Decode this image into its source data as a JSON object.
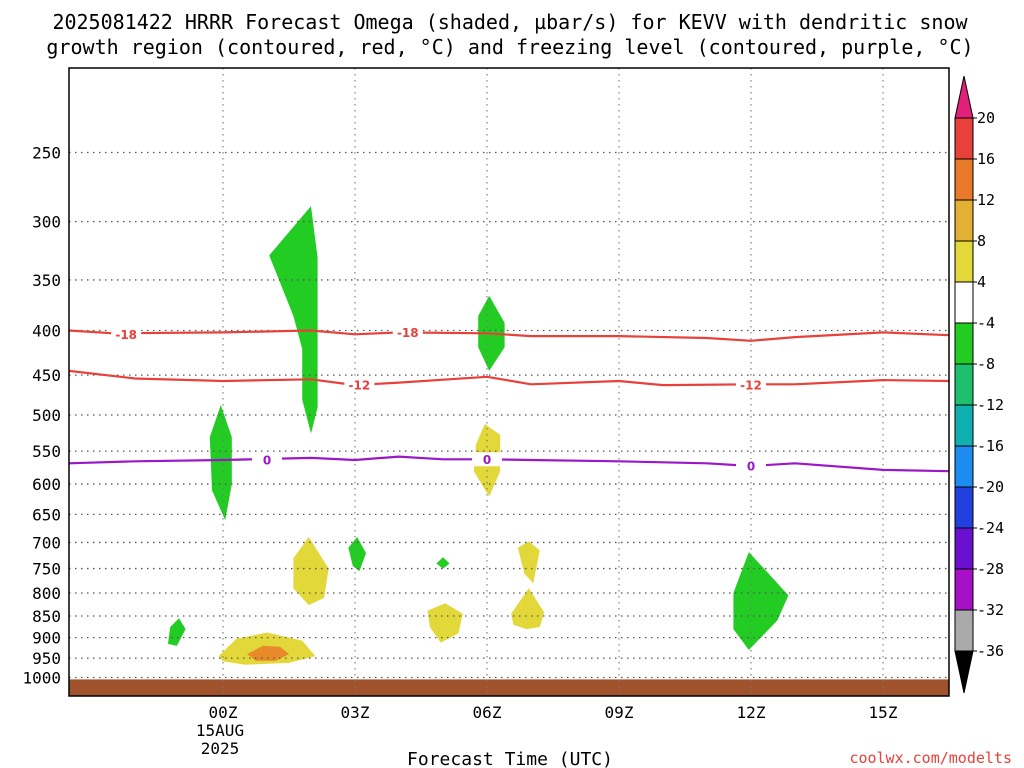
{
  "chart_data": {
    "type": "heatmap",
    "title_line1": "2025081422 HRRR Forecast Omega (shaded, µbar/s) for KEVV with dendritic snow",
    "title_line2": "growth region (contoured, red, °C) and freezing level (contoured, purple, °C)",
    "xlabel": "Forecast Time (UTC)",
    "x_axis": {
      "range_hours": [
        -3.5,
        16.5
      ],
      "ticks": [
        {
          "hour": 0,
          "label": "00Z",
          "sub1": "15AUG",
          "sub2": "2025"
        },
        {
          "hour": 3,
          "label": "03Z"
        },
        {
          "hour": 6,
          "label": "06Z"
        },
        {
          "hour": 9,
          "label": "09Z"
        },
        {
          "hour": 12,
          "label": "12Z"
        },
        {
          "hour": 15,
          "label": "15Z"
        }
      ]
    },
    "y_axis": {
      "unit": "hPa",
      "reversed": true,
      "range": [
        1050,
        200
      ],
      "ticks": [
        250,
        300,
        350,
        400,
        450,
        500,
        550,
        600,
        650,
        700,
        750,
        800,
        850,
        900,
        950,
        1000
      ]
    },
    "grid": true,
    "colorbar": {
      "levels": [
        "20",
        "16",
        "12",
        "8",
        "4",
        "-4",
        "-8",
        "-12",
        "-16",
        "-20",
        "-24",
        "-28",
        "-32",
        "-36"
      ],
      "segments": [
        {
          "color": "#e8403a"
        },
        {
          "color": "#e87a2a"
        },
        {
          "color": "#e2b032"
        },
        {
          "color": "#e2d83a"
        },
        {
          "color": "#ffffff"
        },
        {
          "color": "#22cc22"
        },
        {
          "color": "#1ec070"
        },
        {
          "color": "#10b0b0"
        },
        {
          "color": "#1c8cf0"
        },
        {
          "color": "#2240e0"
        },
        {
          "color": "#6a10d0"
        },
        {
          "color": "#a810c8"
        },
        {
          "color": "#aaaaaa"
        }
      ],
      "top_arrow_color": "#e0207a",
      "bottom_arrow_color": "#000000"
    },
    "omega_regions": [
      {
        "color": "#22cc22",
        "points": [
          [
            1.05,
            328
          ],
          [
            2.0,
            288
          ],
          [
            2.15,
            330
          ],
          [
            2.15,
            490
          ],
          [
            2.0,
            525
          ],
          [
            1.8,
            480
          ],
          [
            1.8,
            420
          ],
          [
            1.6,
            385
          ]
        ]
      },
      {
        "color": "#22cc22",
        "points": [
          [
            -0.3,
            530
          ],
          [
            -0.05,
            487
          ],
          [
            0.2,
            530
          ],
          [
            0.2,
            600
          ],
          [
            0.05,
            660
          ],
          [
            -0.25,
            610
          ]
        ]
      },
      {
        "color": "#22cc22",
        "points": [
          [
            5.8,
            385
          ],
          [
            6.05,
            365
          ],
          [
            6.4,
            392
          ],
          [
            6.4,
            418
          ],
          [
            6.05,
            445
          ],
          [
            5.8,
            418
          ]
        ]
      },
      {
        "color": "#e2d83a",
        "points": [
          [
            5.75,
            540
          ],
          [
            5.95,
            512
          ],
          [
            6.3,
            527
          ],
          [
            6.3,
            580
          ],
          [
            6.05,
            620
          ],
          [
            5.7,
            580
          ]
        ]
      },
      {
        "color": "#22cc22",
        "points": [
          [
            -1.2,
            875
          ],
          [
            -1.0,
            855
          ],
          [
            -0.85,
            880
          ],
          [
            -1.05,
            920
          ],
          [
            -1.25,
            915
          ]
        ]
      },
      {
        "color": "#e2d83a",
        "points": [
          [
            -0.1,
            945
          ],
          [
            0.3,
            903
          ],
          [
            1.0,
            888
          ],
          [
            1.8,
            907
          ],
          [
            2.1,
            945
          ],
          [
            1.5,
            962
          ],
          [
            0.5,
            967
          ],
          [
            0.0,
            958
          ]
        ]
      },
      {
        "color": "#e88a2a",
        "points": [
          [
            0.55,
            940
          ],
          [
            0.9,
            920
          ],
          [
            1.3,
            922
          ],
          [
            1.5,
            940
          ],
          [
            1.2,
            957
          ],
          [
            0.75,
            957
          ]
        ]
      },
      {
        "color": "#e2d83a",
        "points": [
          [
            1.6,
            730
          ],
          [
            1.95,
            690
          ],
          [
            2.4,
            750
          ],
          [
            2.3,
            810
          ],
          [
            1.95,
            826
          ],
          [
            1.6,
            790
          ]
        ]
      },
      {
        "color": "#22cc22",
        "points": [
          [
            2.85,
            710
          ],
          [
            3.05,
            690
          ],
          [
            3.25,
            720
          ],
          [
            3.1,
            755
          ],
          [
            2.95,
            745
          ]
        ]
      },
      {
        "color": "#22cc22",
        "points": [
          [
            4.85,
            740
          ],
          [
            5.0,
            728
          ],
          [
            5.15,
            740
          ],
          [
            5.0,
            750
          ]
        ]
      },
      {
        "color": "#e2d83a",
        "points": [
          [
            4.65,
            838
          ],
          [
            5.05,
            822
          ],
          [
            5.45,
            845
          ],
          [
            5.35,
            890
          ],
          [
            4.95,
            912
          ],
          [
            4.7,
            875
          ]
        ]
      },
      {
        "color": "#e2d83a",
        "points": [
          [
            6.7,
            710
          ],
          [
            6.95,
            698
          ],
          [
            7.2,
            715
          ],
          [
            7.05,
            780
          ],
          [
            6.85,
            760
          ]
        ]
      },
      {
        "color": "#e2d83a",
        "points": [
          [
            6.55,
            845
          ],
          [
            6.95,
            790
          ],
          [
            7.3,
            842
          ],
          [
            7.2,
            875
          ],
          [
            6.9,
            880
          ],
          [
            6.6,
            870
          ]
        ]
      },
      {
        "color": "#22cc22",
        "points": [
          [
            11.6,
            800
          ],
          [
            11.95,
            718
          ],
          [
            12.4,
            760
          ],
          [
            12.85,
            805
          ],
          [
            12.6,
            860
          ],
          [
            11.95,
            930
          ],
          [
            11.6,
            880
          ]
        ]
      }
    ],
    "contours": [
      {
        "value": "-18",
        "color": "#e8403a",
        "points": [
          [
            -3.5,
            400
          ],
          [
            -2.5,
            403
          ],
          [
            0,
            402
          ],
          [
            2,
            400
          ],
          [
            3,
            404
          ],
          [
            4,
            402
          ],
          [
            6,
            403
          ],
          [
            7,
            406
          ],
          [
            9,
            406
          ],
          [
            11,
            408
          ],
          [
            12,
            411
          ],
          [
            13,
            407
          ],
          [
            15,
            402
          ],
          [
            16.5,
            405
          ]
        ],
        "labels": [
          [
            -2.2,
            404
          ],
          [
            4.2,
            402
          ]
        ]
      },
      {
        "value": "-12",
        "color": "#e8403a",
        "points": [
          [
            -3.5,
            445
          ],
          [
            -2,
            454
          ],
          [
            0,
            457
          ],
          [
            2,
            455
          ],
          [
            3,
            462
          ],
          [
            4,
            459
          ],
          [
            6,
            452
          ],
          [
            7,
            461
          ],
          [
            9,
            457
          ],
          [
            10,
            462
          ],
          [
            12,
            461
          ],
          [
            13,
            461
          ],
          [
            15,
            456
          ],
          [
            16.5,
            457
          ]
        ],
        "labels": [
          [
            3.1,
            462
          ],
          [
            12.0,
            462
          ]
        ]
      },
      {
        "value": "0",
        "color": "#9a18c8",
        "points": [
          [
            -3.5,
            568
          ],
          [
            -2,
            565
          ],
          [
            0,
            563
          ],
          [
            2,
            560
          ],
          [
            3,
            563
          ],
          [
            4,
            558
          ],
          [
            5,
            562
          ],
          [
            6,
            562
          ],
          [
            7,
            563
          ],
          [
            9,
            565
          ],
          [
            11,
            568
          ],
          [
            12,
            572
          ],
          [
            13,
            568
          ],
          [
            15,
            578
          ],
          [
            16.5,
            580
          ]
        ],
        "labels": [
          [
            1.0,
            563
          ],
          [
            6.0,
            562
          ],
          [
            12.0,
            572
          ]
        ]
      }
    ],
    "terrain": {
      "color": "#a0522d",
      "from_hPa": 1005
    }
  },
  "credit": "coolwx.com/modelts"
}
